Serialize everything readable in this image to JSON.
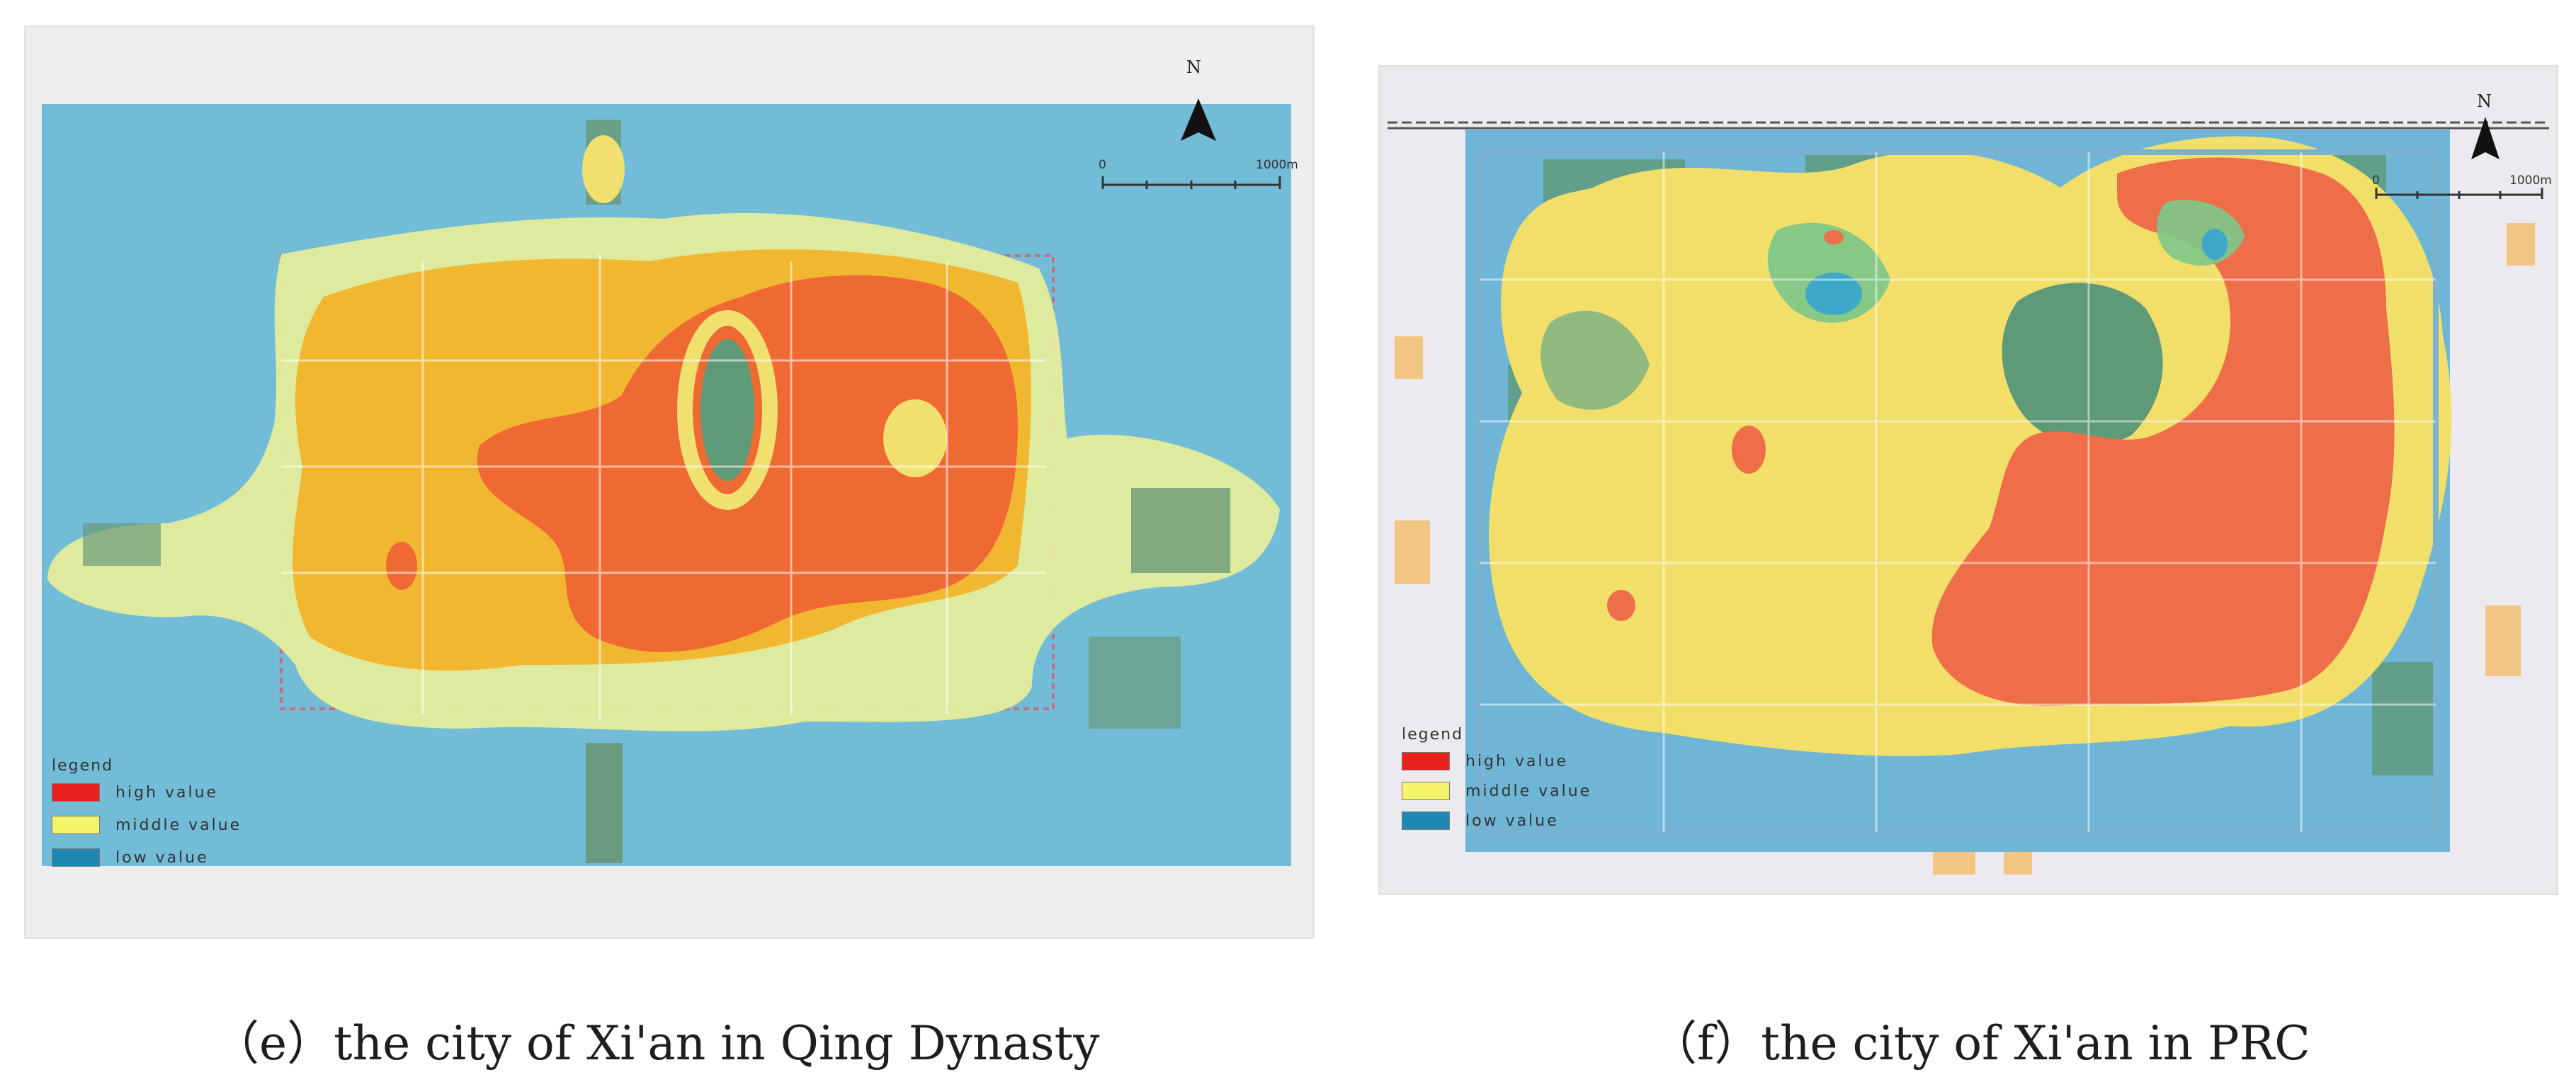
{
  "panels": [
    {
      "id": "e",
      "caption": "（e）the city of Xi'an in Qing Dynasty",
      "north_label": "N",
      "scale": {
        "start": "0",
        "end": "1000m"
      },
      "legend": {
        "title": "legend",
        "items": [
          {
            "label": "high value",
            "color": "#e8201e"
          },
          {
            "label": "middle value",
            "color": "#f5f36a"
          },
          {
            "label": "low value",
            "color": "#1e88b4"
          }
        ]
      }
    },
    {
      "id": "f",
      "caption": "（f）the city of Xi'an in PRC",
      "north_label": "N",
      "scale": {
        "start": "0",
        "end": "1000m"
      },
      "legend": {
        "title": "legend",
        "items": [
          {
            "label": "high value",
            "color": "#e8201e"
          },
          {
            "label": "middle value",
            "color": "#f5f36a"
          },
          {
            "label": "low value",
            "color": "#1e88b4"
          }
        ]
      }
    }
  ],
  "colors": {
    "low": "#6cbbd6",
    "middle": "#f0e26a",
    "orange": "#f2b429",
    "high": "#ee6a32",
    "green_patch": "#5f9a6a"
  }
}
